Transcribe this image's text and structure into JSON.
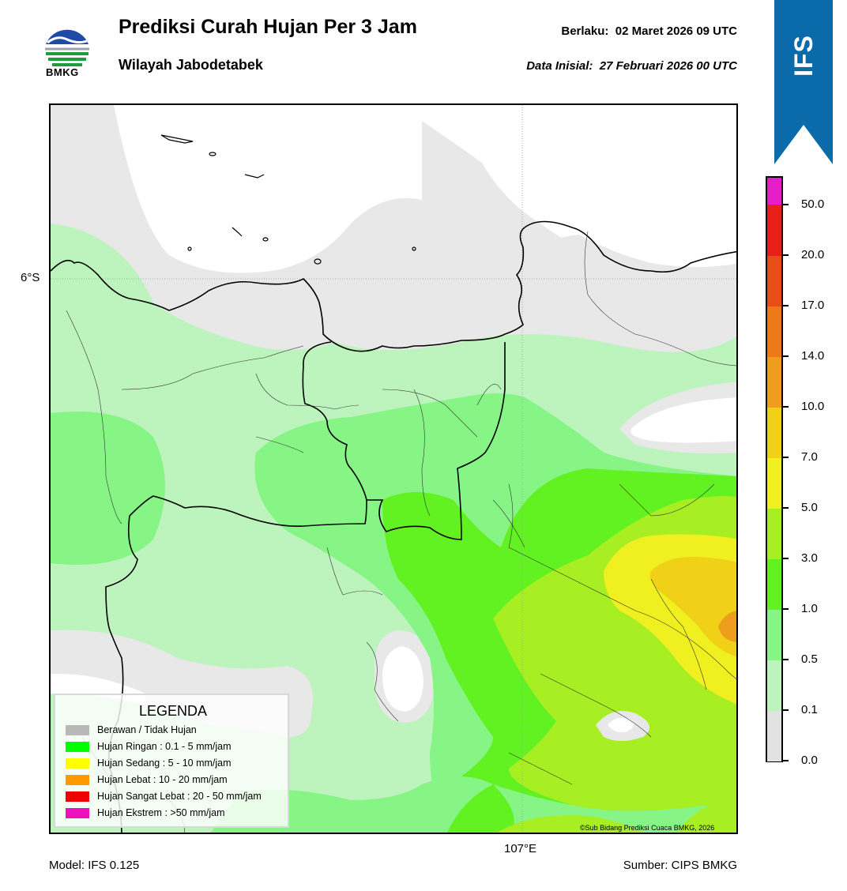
{
  "header": {
    "logo_text": "BMKG",
    "title": "Prediksi Curah Hujan Per 3 Jam",
    "subtitle": "Wilayah Jabodetabek",
    "valid_label": "Berlaku:",
    "valid_value": "02 Maret 2026 09 UTC",
    "init_label": "Data Inisial:",
    "init_value": "27 Februari 2026 00 UTC",
    "ribbon_text": "IFS"
  },
  "map": {
    "lat_label": "6°S",
    "lon_label": "107°E",
    "credit": "©Sub Bidang Prediksi Cuaca BMKG, 2026"
  },
  "footer": {
    "model": "Model: IFS 0.125",
    "source": "Sumber: CIPS BMKG"
  },
  "legend": {
    "title": "LEGENDA",
    "items": [
      {
        "label": "Berawan / Tidak Hujan",
        "color": "#b8b8b8"
      },
      {
        "label": "Hujan Ringan : 0.1 - 5 mm/jam",
        "color": "#00ff00"
      },
      {
        "label": "Hujan Sedang : 5 - 10 mm/jam",
        "color": "#ffff00"
      },
      {
        "label": "Hujan Lebat : 10 - 20 mm/jam",
        "color": "#ff9900"
      },
      {
        "label": "Hujan Sangat Lebat : 20 - 50 mm/jam",
        "color": "#ee0000"
      },
      {
        "label": "Hujan Ekstrem : >50 mm/jam",
        "color": "#ee11bb"
      }
    ]
  },
  "colorbar": {
    "labels": [
      "0.0",
      "0.1",
      "0.5",
      "1.0",
      "3.0",
      "5.0",
      "7.0",
      "10.0",
      "14.0",
      "17.0",
      "20.0",
      "50.0"
    ],
    "colors": [
      "#f0f0f0",
      "#e2e2e2",
      "#bdf3bd",
      "#86f586",
      "#62f221",
      "#a7ee22",
      "#f0f020",
      "#f0d118",
      "#ef9d1d",
      "#ee7918",
      "#e84d18",
      "#e81e18",
      "#e61ec8"
    ]
  },
  "palette": {
    "white": "#ffffff",
    "grey": "#e8e8e8",
    "light_green": "#bdf3bd",
    "green": "#86f586",
    "bright_green": "#62f221",
    "yellow_green": "#a7ee22",
    "yellow": "#f0f020",
    "gold": "#f0d118",
    "orange": "#ef9d1d",
    "ribbon_blue": "#0b6aa9"
  }
}
